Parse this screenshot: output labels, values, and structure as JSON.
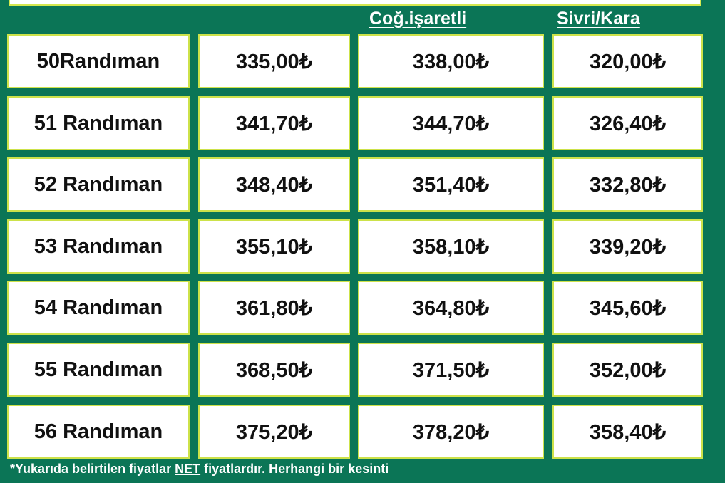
{
  "table": {
    "header": [
      "Coğ.işaretli",
      "Sivri/Kara"
    ],
    "rows": [
      [
        "50Randıman",
        "335,00₺",
        "338,00₺",
        "320,00₺"
      ],
      [
        "51 Randıman",
        "341,70₺",
        "344,70₺",
        "326,40₺"
      ],
      [
        "52 Randıman",
        "348,40₺",
        "351,40₺",
        "332,80₺"
      ],
      [
        "53 Randıman",
        "355,10₺",
        "358,10₺",
        "339,20₺"
      ],
      [
        "54 Randıman",
        "361,80₺",
        "364,80₺",
        "345,60₺"
      ],
      [
        "55 Randıman",
        "368,50₺",
        "371,50₺",
        "352,00₺"
      ],
      [
        "56 Randıman",
        "375,20₺",
        "378,20₺",
        "358,40₺"
      ]
    ]
  },
  "footer": {
    "before": "*Yukarıda belirtilen fiyatlar",
    "highlight": "NET",
    "after": "fiyatlardır. Herhangi bir kesinti"
  }
}
